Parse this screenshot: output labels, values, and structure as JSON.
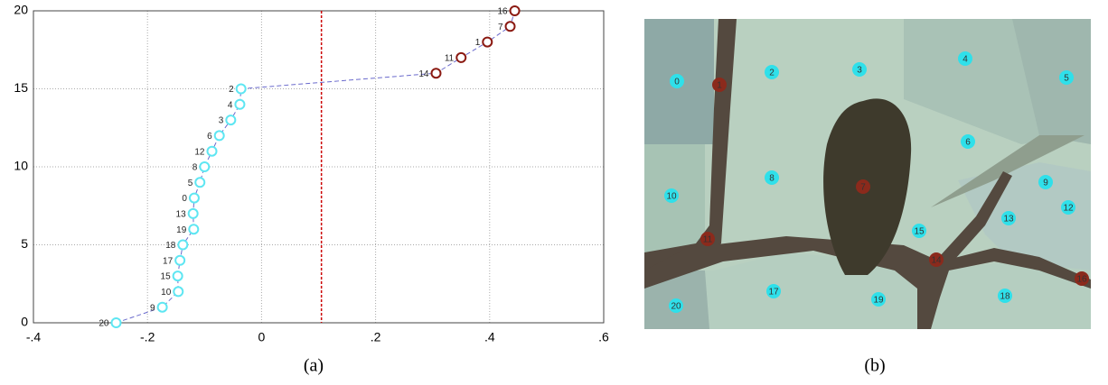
{
  "chart_data": {
    "type": "line",
    "xlim": [
      -0.4,
      0.6
    ],
    "xticks": [
      {
        "value": -0.4,
        "label": "-.4"
      },
      {
        "value": -0.2,
        "label": "-.2"
      },
      0,
      {
        "value": 0.2,
        "label": ".2"
      },
      {
        "value": 0.4,
        "label": ".4"
      },
      {
        "value": 0.6,
        "label": ".6"
      }
    ],
    "ylim": [
      0,
      20
    ],
    "yticks": [
      0,
      5,
      10,
      15,
      20
    ],
    "grid": true,
    "threshold_x": 0.105,
    "threshold_color": "#cc0000",
    "line_color": "#6a6acc",
    "series": [
      {
        "x": [
          -0.255,
          -0.174,
          -0.146,
          -0.147,
          -0.143,
          -0.138,
          -0.119,
          -0.12,
          -0.118,
          -0.108,
          -0.1,
          -0.087,
          -0.074,
          -0.054,
          -0.038,
          -0.036,
          0.306,
          0.35,
          0.396,
          0.436,
          0.444
        ],
        "values": [
          0,
          1,
          2,
          3,
          4,
          5,
          6,
          7,
          8,
          9,
          10,
          11,
          12,
          13,
          14,
          15,
          16,
          17,
          18,
          19,
          20
        ],
        "point_labels": [
          "20",
          "9",
          "10",
          "15",
          "17",
          "18",
          "19",
          "13",
          "0",
          "5",
          "8",
          "12",
          "6",
          "3",
          "4",
          "2",
          "14",
          "11",
          "1",
          "7",
          "16"
        ],
        "point_colors": [
          "#5ee6f2",
          "#5ee6f2",
          "#5ee6f2",
          "#5ee6f2",
          "#5ee6f2",
          "#5ee6f2",
          "#5ee6f2",
          "#5ee6f2",
          "#5ee6f2",
          "#5ee6f2",
          "#5ee6f2",
          "#5ee6f2",
          "#5ee6f2",
          "#5ee6f2",
          "#5ee6f2",
          "#5ee6f2",
          "#8b1a12",
          "#8b1a12",
          "#8b1a12",
          "#8b1a12",
          "#8b1a12"
        ]
      }
    ],
    "caption": "(a)"
  },
  "image": {
    "caption": "(b)",
    "nodes": [
      {
        "label": "0",
        "color": "#2fe0ea"
      },
      {
        "label": "1",
        "color": "#8b2a1c"
      },
      {
        "label": "2",
        "color": "#2fe0ea"
      },
      {
        "label": "3",
        "color": "#2fe0ea"
      },
      {
        "label": "4",
        "color": "#2fe0ea"
      },
      {
        "label": "5",
        "color": "#2fe0ea"
      },
      {
        "label": "6",
        "color": "#2fe0ea"
      },
      {
        "label": "7",
        "color": "#8b2a1c"
      },
      {
        "label": "8",
        "color": "#2fe0ea"
      },
      {
        "label": "9",
        "color": "#2fe0ea"
      },
      {
        "label": "10",
        "color": "#2fe0ea"
      },
      {
        "label": "11",
        "color": "#8b2a1c"
      },
      {
        "label": "12",
        "color": "#2fe0ea"
      },
      {
        "label": "13",
        "color": "#2fe0ea"
      },
      {
        "label": "14",
        "color": "#8b2a1c"
      },
      {
        "label": "15",
        "color": "#2fe0ea"
      },
      {
        "label": "16",
        "color": "#8b2a1c"
      },
      {
        "label": "17",
        "color": "#2fe0ea"
      },
      {
        "label": "18",
        "color": "#2fe0ea"
      },
      {
        "label": "19",
        "color": "#2fe0ea"
      },
      {
        "label": "20",
        "color": "#2fe0ea"
      }
    ]
  }
}
